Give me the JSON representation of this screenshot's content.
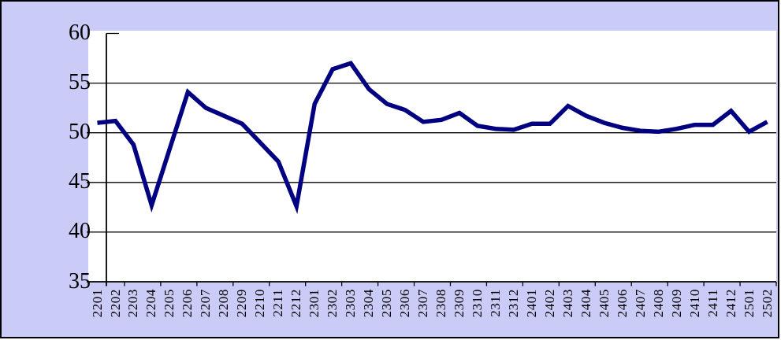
{
  "chart_data": {
    "type": "line",
    "title": "",
    "xlabel": "",
    "ylabel": "",
    "legend": "none",
    "grid": "horizontal",
    "ylim": [
      35,
      60
    ],
    "y_ticks": [
      "35",
      "40",
      "45",
      "50",
      "55",
      "60"
    ],
    "categories": [
      "2201",
      "2202",
      "2203",
      "2204",
      "2205",
      "2206",
      "2207",
      "2208",
      "2209",
      "2210",
      "2211",
      "2212",
      "2301",
      "2302",
      "2303",
      "2304",
      "2305",
      "2306",
      "2307",
      "2308",
      "2309",
      "2310",
      "2311",
      "2312",
      "2401",
      "2402",
      "2403",
      "2404",
      "2405",
      "2406",
      "2407",
      "2408",
      "2409",
      "2410",
      "2411",
      "2412",
      "2501",
      "2502"
    ],
    "values": [
      51.0,
      51.2,
      48.8,
      42.7,
      48.4,
      54.1,
      52.5,
      51.7,
      50.9,
      49.0,
      47.1,
      42.6,
      52.9,
      56.4,
      57.0,
      54.4,
      52.9,
      52.3,
      51.1,
      51.3,
      52.0,
      50.7,
      50.4,
      50.3,
      50.9,
      50.9,
      52.7,
      51.7,
      51.0,
      50.5,
      50.2,
      50.1,
      50.4,
      50.8,
      50.8,
      52.2,
      50.1,
      51.1
    ],
    "colors": {
      "line": "#000080",
      "chart_background": "#cbcbf7",
      "plot_background": "#ffffff",
      "axis": "#000000",
      "border": "#000000",
      "text": "#000000"
    }
  }
}
